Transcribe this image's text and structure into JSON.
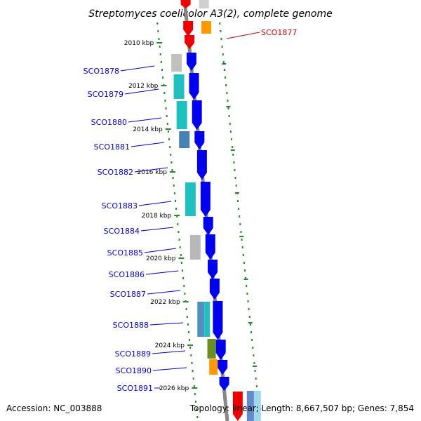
{
  "title": "Streptomyces coelicolor A3(2), complete genome",
  "footer": {
    "accession": "Accession: NC_003888",
    "summary": "Topology: linear; Length: 8,667,507 bp; Genes: 7,854"
  },
  "colors": {
    "axis": "#888888",
    "tick": "#228b22",
    "gene_label": "#0000cc",
    "highlight_label": "#cc0000",
    "forward_gene": "#0000ee",
    "highlight_gene": "#ee0000"
  },
  "ticks": [
    {
      "label": "2010 kbp",
      "kbp": 2010
    },
    {
      "label": "2012 kbp",
      "kbp": 2012
    },
    {
      "label": "2014 kbp",
      "kbp": 2014
    },
    {
      "label": "2016 kbp",
      "kbp": 2016
    },
    {
      "label": "2018 kbp",
      "kbp": 2018
    },
    {
      "label": "2020 kbp",
      "kbp": 2020
    },
    {
      "label": "2022 kbp",
      "kbp": 2022
    },
    {
      "label": "2024 kbp",
      "kbp": 2024
    },
    {
      "label": "2026 kbp",
      "kbp": 2026
    }
  ],
  "genes": [
    {
      "name": "SCO1877",
      "highlight": true
    },
    {
      "name": "SCO1878"
    },
    {
      "name": "SCO1879"
    },
    {
      "name": "SCO1880"
    },
    {
      "name": "SCO1881"
    },
    {
      "name": "SCO1882"
    },
    {
      "name": "SCO1883"
    },
    {
      "name": "SCO1884"
    },
    {
      "name": "SCO1885"
    },
    {
      "name": "SCO1886"
    },
    {
      "name": "SCO1887"
    },
    {
      "name": "SCO1888"
    },
    {
      "name": "SCO1889"
    },
    {
      "name": "SCO1890"
    },
    {
      "name": "SCO1891"
    }
  ]
}
